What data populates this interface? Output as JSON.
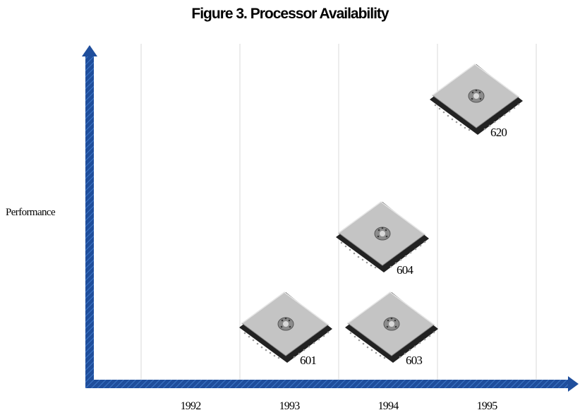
{
  "chart_data": {
    "type": "scatter",
    "title": "Figure 3. Processor Availability",
    "xlabel": "",
    "ylabel": "Performance",
    "categories": [
      "1992",
      "1993",
      "1994",
      "1995"
    ],
    "grid": true,
    "legend": "none",
    "marker": "processor-chip-icon",
    "points": [
      {
        "label": "601",
        "year": "1993",
        "performance_rank": 1
      },
      {
        "label": "603",
        "year": "1994",
        "performance_rank": 1
      },
      {
        "label": "604",
        "year": "1994",
        "performance_rank": 2
      },
      {
        "label": "620",
        "year": "1995",
        "performance_rank": 3
      }
    ],
    "colors": {
      "axis": "#1f4e9c",
      "grid": "#d9d9d9",
      "chip_top": "#c4c4c4",
      "chip_side": "#2a2a2a"
    }
  }
}
